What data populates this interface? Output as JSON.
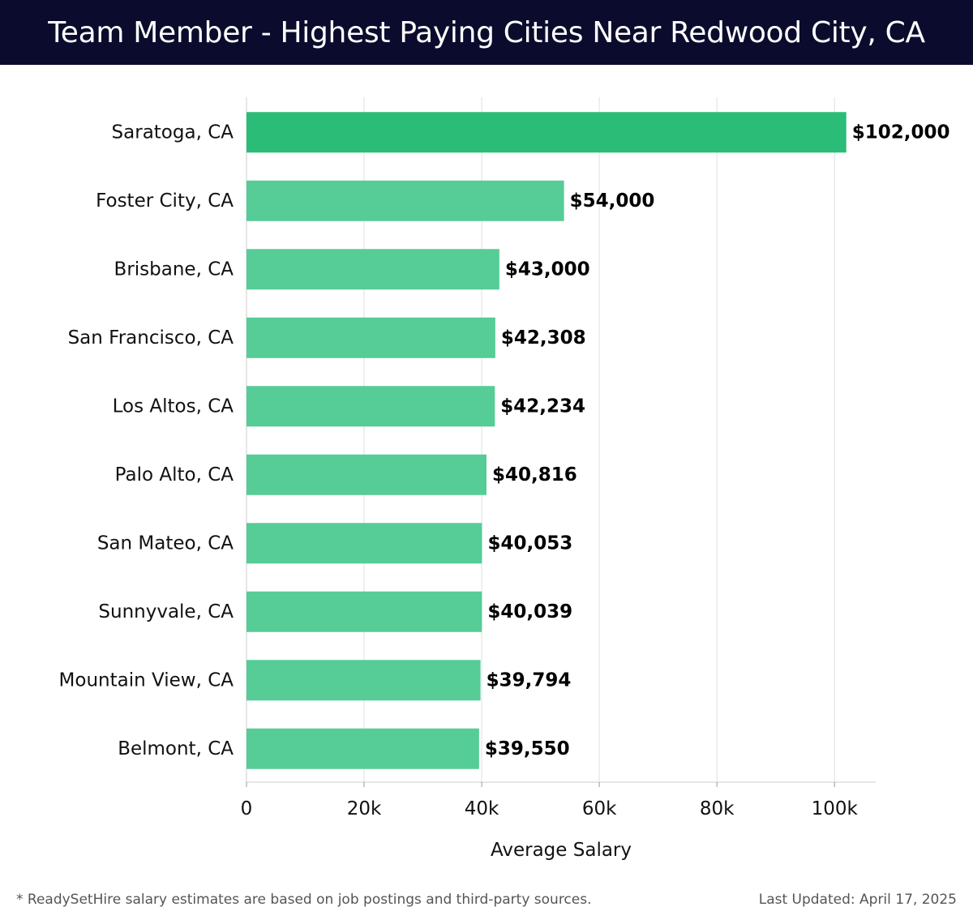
{
  "header": {
    "title": "Team Member - Highest Paying Cities Near Redwood City, CA"
  },
  "footer": {
    "note": "* ReadySetHire salary estimates are based on job postings and third-party sources.",
    "updated": "Last Updated: April 17, 2025"
  },
  "colors": {
    "title_bg": "#0b0c2d",
    "bar_top": "#2bbd78",
    "bar": "#56cc97",
    "grid": "#e0e0e0"
  },
  "chart_data": {
    "type": "bar",
    "orientation": "horizontal",
    "title": "Team Member - Highest Paying Cities Near Redwood City, CA",
    "xlabel": "Average Salary",
    "ylabel": "",
    "xlim": [
      0,
      107000
    ],
    "grid": true,
    "categories": [
      "Saratoga, CA",
      "Foster City, CA",
      "Brisbane, CA",
      "San Francisco, CA",
      "Los Altos, CA",
      "Palo Alto, CA",
      "San Mateo, CA",
      "Sunnyvale, CA",
      "Mountain View, CA",
      "Belmont, CA"
    ],
    "values": [
      102000,
      54000,
      43000,
      42308,
      42234,
      40816,
      40053,
      40039,
      39794,
      39550
    ],
    "value_labels": [
      "$102,000",
      "$54,000",
      "$43,000",
      "$42,308",
      "$42,234",
      "$40,816",
      "$40,053",
      "$40,039",
      "$39,794",
      "$39,550"
    ],
    "ticks": [
      0,
      20000,
      40000,
      60000,
      80000,
      100000
    ],
    "tick_labels": [
      "0",
      "20k",
      "40k",
      "60k",
      "80k",
      "100k"
    ]
  }
}
